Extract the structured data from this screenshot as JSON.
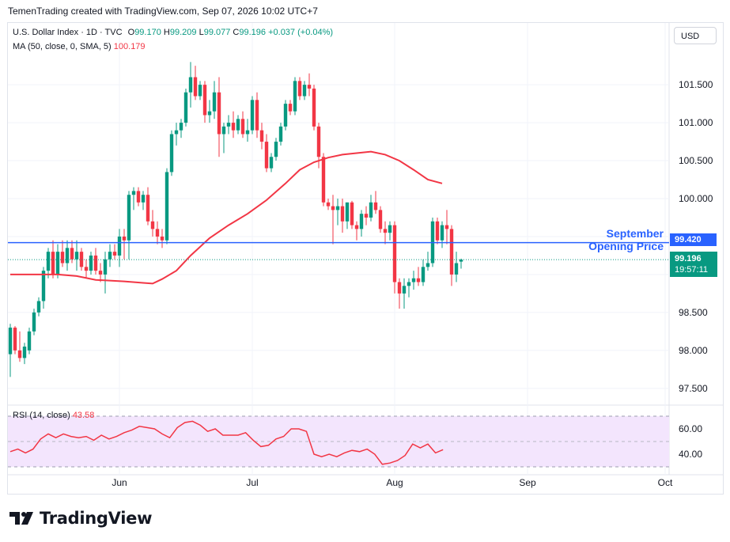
{
  "header": {
    "attribution": "TemenTrading created with TradingView.com, Sep 07, 2026 10:02 UTC+7"
  },
  "legend": {
    "symbol": "U.S. Dollar Index · 1D · TVC",
    "o_label": "O",
    "o_value": "99.170",
    "h_label": "H",
    "h_value": "99.209",
    "l_label": "L",
    "l_value": "99.077",
    "c_label": "C",
    "c_value": "99.196",
    "change": "+0.037 (+0.04%)",
    "ma_label": "MA (50, close, 0, SMA, 5)",
    "ma_value": "100.179"
  },
  "currency": "USD",
  "tags": {
    "september_price": "99.420",
    "last_price": "99.196",
    "countdown": "19:57:11"
  },
  "annotation": {
    "line1": "September",
    "line2": "Opening Price"
  },
  "rsi_legend": {
    "label": "RSI (14, close)",
    "value": "43.58"
  },
  "logo": {
    "word": "TradingView"
  },
  "colors": {
    "up": "#089981",
    "down": "#f23645",
    "ma": "#f23645",
    "hline": "#2962ff",
    "rsi": "#f23645",
    "rsi_band": "#f3e5fd"
  },
  "chart_data": [
    {
      "type": "candlestick",
      "title": "U.S. Dollar Index · 1D · TVC",
      "x_labels": [
        "Jun",
        "Jul",
        "Aug",
        "Sep",
        "Oct"
      ],
      "y_ticks": [
        97.5,
        98.0,
        98.5,
        99.0,
        99.5,
        100.0,
        100.5,
        101.0,
        101.5
      ],
      "y_tick_labels": [
        "97.500",
        "98.000",
        "98.500",
        "",
        "",
        "100.000",
        "100.500",
        "101.000",
        "101.500"
      ],
      "ylim": [
        97.3,
        102.2
      ],
      "horizontal_line": {
        "value": 99.42,
        "label": "September Opening Price"
      },
      "last_price": 99.196,
      "candles": [
        {
          "o": 97.95,
          "h": 98.35,
          "l": 97.65,
          "c": 98.3
        },
        {
          "o": 98.3,
          "h": 98.32,
          "l": 97.95,
          "c": 98.0
        },
        {
          "o": 98.0,
          "h": 98.25,
          "l": 97.85,
          "c": 97.9
        },
        {
          "o": 97.9,
          "h": 98.1,
          "l": 97.82,
          "c": 98.05
        },
        {
          "o": 98.0,
          "h": 98.3,
          "l": 97.95,
          "c": 98.25
        },
        {
          "o": 98.25,
          "h": 98.55,
          "l": 98.2,
          "c": 98.5
        },
        {
          "o": 98.5,
          "h": 98.7,
          "l": 98.45,
          "c": 98.65
        },
        {
          "o": 98.65,
          "h": 99.1,
          "l": 98.55,
          "c": 99.05
        },
        {
          "o": 99.05,
          "h": 99.35,
          "l": 98.95,
          "c": 99.3
        },
        {
          "o": 99.3,
          "h": 99.45,
          "l": 98.95,
          "c": 99.0
        },
        {
          "o": 99.0,
          "h": 99.4,
          "l": 98.95,
          "c": 99.3
        },
        {
          "o": 99.3,
          "h": 99.45,
          "l": 99.1,
          "c": 99.15
        },
        {
          "o": 99.15,
          "h": 99.45,
          "l": 99.05,
          "c": 99.35
        },
        {
          "o": 99.35,
          "h": 99.45,
          "l": 99.15,
          "c": 99.2
        },
        {
          "o": 99.2,
          "h": 99.45,
          "l": 99.05,
          "c": 99.3
        },
        {
          "o": 99.3,
          "h": 99.35,
          "l": 99.05,
          "c": 99.1
        },
        {
          "o": 99.1,
          "h": 99.2,
          "l": 98.95,
          "c": 99.05
        },
        {
          "o": 99.05,
          "h": 99.3,
          "l": 99.0,
          "c": 99.25
        },
        {
          "o": 99.25,
          "h": 99.35,
          "l": 99.0,
          "c": 99.05
        },
        {
          "o": 99.05,
          "h": 99.15,
          "l": 98.9,
          "c": 99.0
        },
        {
          "o": 99.0,
          "h": 99.3,
          "l": 98.75,
          "c": 99.2
        },
        {
          "o": 99.2,
          "h": 99.4,
          "l": 99.1,
          "c": 99.3
        },
        {
          "o": 99.3,
          "h": 99.4,
          "l": 99.2,
          "c": 99.25
        },
        {
          "o": 99.25,
          "h": 99.6,
          "l": 99.1,
          "c": 99.5
        },
        {
          "o": 99.5,
          "h": 99.6,
          "l": 99.2,
          "c": 99.45
        },
        {
          "o": 99.45,
          "h": 100.1,
          "l": 99.2,
          "c": 100.05
        },
        {
          "o": 100.05,
          "h": 100.15,
          "l": 99.85,
          "c": 100.1
        },
        {
          "o": 100.1,
          "h": 100.15,
          "l": 99.9,
          "c": 99.95
        },
        {
          "o": 99.95,
          "h": 100.1,
          "l": 99.85,
          "c": 100.05
        },
        {
          "o": 100.05,
          "h": 100.15,
          "l": 99.65,
          "c": 99.7
        },
        {
          "o": 99.7,
          "h": 99.85,
          "l": 99.5,
          "c": 99.6
        },
        {
          "o": 99.6,
          "h": 99.7,
          "l": 99.4,
          "c": 99.5
        },
        {
          "o": 99.5,
          "h": 99.6,
          "l": 99.35,
          "c": 99.45
        },
        {
          "o": 99.45,
          "h": 100.4,
          "l": 99.4,
          "c": 100.35
        },
        {
          "o": 100.35,
          "h": 100.9,
          "l": 100.3,
          "c": 100.85
        },
        {
          "o": 100.85,
          "h": 101.0,
          "l": 100.7,
          "c": 100.9
        },
        {
          "o": 100.9,
          "h": 101.05,
          "l": 100.8,
          "c": 101.0
        },
        {
          "o": 101.0,
          "h": 101.45,
          "l": 100.95,
          "c": 101.4
        },
        {
          "o": 101.4,
          "h": 101.8,
          "l": 101.2,
          "c": 101.6
        },
        {
          "o": 101.6,
          "h": 101.75,
          "l": 101.3,
          "c": 101.35
        },
        {
          "o": 101.35,
          "h": 101.55,
          "l": 101.3,
          "c": 101.5
        },
        {
          "o": 101.5,
          "h": 101.55,
          "l": 101.0,
          "c": 101.1
        },
        {
          "o": 101.1,
          "h": 101.3,
          "l": 101.0,
          "c": 101.15
        },
        {
          "o": 101.15,
          "h": 101.55,
          "l": 101.05,
          "c": 101.4
        },
        {
          "o": 101.4,
          "h": 101.6,
          "l": 100.55,
          "c": 100.85
        },
        {
          "o": 100.85,
          "h": 101.0,
          "l": 100.6,
          "c": 100.95
        },
        {
          "o": 100.95,
          "h": 101.1,
          "l": 100.85,
          "c": 101.0
        },
        {
          "o": 101.0,
          "h": 101.15,
          "l": 100.8,
          "c": 100.9
        },
        {
          "o": 100.9,
          "h": 101.1,
          "l": 100.85,
          "c": 101.05
        },
        {
          "o": 101.05,
          "h": 101.15,
          "l": 100.8,
          "c": 100.85
        },
        {
          "o": 100.85,
          "h": 101.05,
          "l": 100.75,
          "c": 100.9
        },
        {
          "o": 100.9,
          "h": 101.35,
          "l": 100.85,
          "c": 101.3
        },
        {
          "o": 101.3,
          "h": 101.4,
          "l": 100.8,
          "c": 100.9
        },
        {
          "o": 100.9,
          "h": 101.0,
          "l": 100.65,
          "c": 100.75
        },
        {
          "o": 100.75,
          "h": 100.85,
          "l": 100.35,
          "c": 100.4
        },
        {
          "o": 100.4,
          "h": 100.6,
          "l": 100.35,
          "c": 100.55
        },
        {
          "o": 100.55,
          "h": 100.8,
          "l": 100.5,
          "c": 100.75
        },
        {
          "o": 100.75,
          "h": 101.0,
          "l": 100.7,
          "c": 100.95
        },
        {
          "o": 100.95,
          "h": 101.3,
          "l": 100.9,
          "c": 101.25
        },
        {
          "o": 101.25,
          "h": 101.3,
          "l": 101.1,
          "c": 101.15
        },
        {
          "o": 101.15,
          "h": 101.6,
          "l": 101.1,
          "c": 101.55
        },
        {
          "o": 101.55,
          "h": 101.6,
          "l": 101.3,
          "c": 101.35
        },
        {
          "o": 101.35,
          "h": 101.55,
          "l": 101.3,
          "c": 101.5
        },
        {
          "o": 101.5,
          "h": 101.65,
          "l": 101.35,
          "c": 101.45
        },
        {
          "o": 101.45,
          "h": 101.5,
          "l": 100.9,
          "c": 100.95
        },
        {
          "o": 100.95,
          "h": 101.0,
          "l": 100.4,
          "c": 100.55
        },
        {
          "o": 100.55,
          "h": 100.6,
          "l": 99.9,
          "c": 99.95
        },
        {
          "o": 99.95,
          "h": 100.0,
          "l": 99.85,
          "c": 99.9
        },
        {
          "o": 99.9,
          "h": 100.05,
          "l": 99.4,
          "c": 99.85
        },
        {
          "o": 99.85,
          "h": 100.0,
          "l": 99.65,
          "c": 99.9
        },
        {
          "o": 99.9,
          "h": 100.0,
          "l": 99.55,
          "c": 99.7
        },
        {
          "o": 99.7,
          "h": 99.95,
          "l": 99.6,
          "c": 99.95
        },
        {
          "o": 99.95,
          "h": 99.97,
          "l": 99.6,
          "c": 99.65
        },
        {
          "o": 99.65,
          "h": 99.7,
          "l": 99.45,
          "c": 99.6
        },
        {
          "o": 99.6,
          "h": 99.85,
          "l": 99.5,
          "c": 99.8
        },
        {
          "o": 99.8,
          "h": 99.9,
          "l": 99.65,
          "c": 99.75
        },
        {
          "o": 99.75,
          "h": 100.05,
          "l": 99.7,
          "c": 99.95
        },
        {
          "o": 99.95,
          "h": 100.1,
          "l": 99.8,
          "c": 99.85
        },
        {
          "o": 99.85,
          "h": 99.9,
          "l": 99.55,
          "c": 99.6
        },
        {
          "o": 99.6,
          "h": 99.7,
          "l": 99.4,
          "c": 99.55
        },
        {
          "o": 99.55,
          "h": 99.7,
          "l": 99.45,
          "c": 99.65
        },
        {
          "o": 99.65,
          "h": 99.7,
          "l": 98.75,
          "c": 98.9
        },
        {
          "o": 98.9,
          "h": 98.95,
          "l": 98.55,
          "c": 98.75
        },
        {
          "o": 98.75,
          "h": 98.95,
          "l": 98.55,
          "c": 98.85
        },
        {
          "o": 98.85,
          "h": 98.95,
          "l": 98.7,
          "c": 98.9
        },
        {
          "o": 98.9,
          "h": 99.05,
          "l": 98.8,
          "c": 98.95
        },
        {
          "o": 98.95,
          "h": 99.1,
          "l": 98.85,
          "c": 98.9
        },
        {
          "o": 98.9,
          "h": 99.2,
          "l": 98.85,
          "c": 99.1
        },
        {
          "o": 99.1,
          "h": 99.3,
          "l": 99.05,
          "c": 99.15
        },
        {
          "o": 99.15,
          "h": 99.75,
          "l": 99.1,
          "c": 99.7
        },
        {
          "o": 99.7,
          "h": 99.75,
          "l": 99.4,
          "c": 99.45
        },
        {
          "o": 99.45,
          "h": 99.7,
          "l": 99.35,
          "c": 99.65
        },
        {
          "o": 99.65,
          "h": 99.85,
          "l": 99.4,
          "c": 99.6
        },
        {
          "o": 99.6,
          "h": 99.65,
          "l": 98.85,
          "c": 99.0
        },
        {
          "o": 99.0,
          "h": 99.3,
          "l": 98.9,
          "c": 99.15
        },
        {
          "o": 99.17,
          "h": 99.209,
          "l": 99.077,
          "c": 99.196
        }
      ],
      "ma": [
        {
          "i": 0,
          "v": 99.0
        },
        {
          "i": 10,
          "v": 99.0
        },
        {
          "i": 14,
          "v": 98.98
        },
        {
          "i": 18,
          "v": 98.93
        },
        {
          "i": 24,
          "v": 98.91
        },
        {
          "i": 28,
          "v": 98.89
        },
        {
          "i": 30,
          "v": 98.88
        },
        {
          "i": 32,
          "v": 98.94
        },
        {
          "i": 35,
          "v": 99.05
        },
        {
          "i": 38,
          "v": 99.25
        },
        {
          "i": 42,
          "v": 99.48
        },
        {
          "i": 46,
          "v": 99.65
        },
        {
          "i": 50,
          "v": 99.8
        },
        {
          "i": 54,
          "v": 99.98
        },
        {
          "i": 58,
          "v": 100.2
        },
        {
          "i": 61,
          "v": 100.38
        },
        {
          "i": 64,
          "v": 100.48
        },
        {
          "i": 67,
          "v": 100.54
        },
        {
          "i": 70,
          "v": 100.58
        },
        {
          "i": 73,
          "v": 100.6
        },
        {
          "i": 76,
          "v": 100.62
        },
        {
          "i": 79,
          "v": 100.58
        },
        {
          "i": 82,
          "v": 100.5
        },
        {
          "i": 85,
          "v": 100.38
        },
        {
          "i": 88,
          "v": 100.25
        },
        {
          "i": 91,
          "v": 100.2
        }
      ]
    },
    {
      "type": "line",
      "title": "RSI (14, close)",
      "ylim": [
        30,
        70
      ],
      "y_ticks": [
        40,
        60
      ],
      "y_tick_labels": [
        "40.00",
        "60.00"
      ],
      "band": [
        30,
        70
      ],
      "last_value": 43.58,
      "values": [
        {
          "i": 0,
          "v": 42
        },
        {
          "i": 2,
          "v": 44
        },
        {
          "i": 4,
          "v": 41
        },
        {
          "i": 6,
          "v": 44
        },
        {
          "i": 8,
          "v": 52
        },
        {
          "i": 10,
          "v": 56
        },
        {
          "i": 12,
          "v": 53
        },
        {
          "i": 14,
          "v": 56
        },
        {
          "i": 16,
          "v": 54
        },
        {
          "i": 18,
          "v": 53
        },
        {
          "i": 20,
          "v": 54
        },
        {
          "i": 22,
          "v": 51
        },
        {
          "i": 24,
          "v": 55
        },
        {
          "i": 26,
          "v": 52
        },
        {
          "i": 28,
          "v": 54
        },
        {
          "i": 30,
          "v": 57
        },
        {
          "i": 32,
          "v": 59
        },
        {
          "i": 34,
          "v": 62
        },
        {
          "i": 36,
          "v": 61
        },
        {
          "i": 38,
          "v": 60
        },
        {
          "i": 40,
          "v": 56
        },
        {
          "i": 42,
          "v": 53
        },
        {
          "i": 44,
          "v": 61
        },
        {
          "i": 46,
          "v": 65
        },
        {
          "i": 48,
          "v": 66
        },
        {
          "i": 50,
          "v": 63
        },
        {
          "i": 52,
          "v": 58
        },
        {
          "i": 54,
          "v": 60
        },
        {
          "i": 56,
          "v": 55
        },
        {
          "i": 58,
          "v": 55
        },
        {
          "i": 60,
          "v": 55
        },
        {
          "i": 62,
          "v": 57
        },
        {
          "i": 64,
          "v": 51
        },
        {
          "i": 66,
          "v": 46
        },
        {
          "i": 68,
          "v": 47
        },
        {
          "i": 70,
          "v": 52
        },
        {
          "i": 72,
          "v": 54
        },
        {
          "i": 74,
          "v": 60
        },
        {
          "i": 76,
          "v": 60
        },
        {
          "i": 78,
          "v": 58
        },
        {
          "i": 80,
          "v": 40
        },
        {
          "i": 82,
          "v": 38
        },
        {
          "i": 84,
          "v": 40
        },
        {
          "i": 86,
          "v": 38
        },
        {
          "i": 88,
          "v": 41
        },
        {
          "i": 90,
          "v": 43
        },
        {
          "i": 92,
          "v": 42
        },
        {
          "i": 94,
          "v": 44
        },
        {
          "i": 96,
          "v": 40
        },
        {
          "i": 98,
          "v": 32
        },
        {
          "i": 100,
          "v": 33
        },
        {
          "i": 102,
          "v": 35
        },
        {
          "i": 104,
          "v": 39
        },
        {
          "i": 106,
          "v": 48
        },
        {
          "i": 108,
          "v": 45
        },
        {
          "i": 110,
          "v": 48
        },
        {
          "i": 112,
          "v": 41
        },
        {
          "i": 114,
          "v": 43.58
        }
      ]
    }
  ]
}
